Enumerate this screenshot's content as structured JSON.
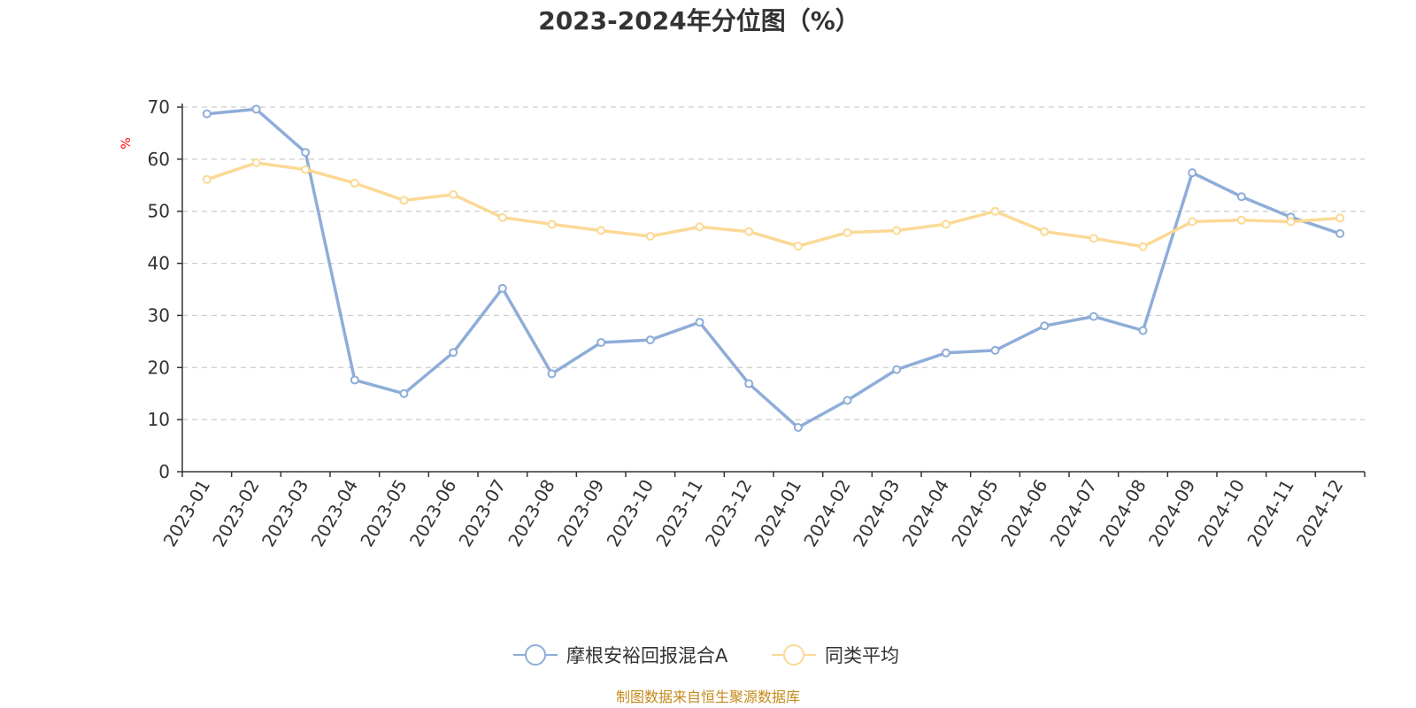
{
  "chart_data": {
    "type": "line",
    "title": "2023-2024年分位图（%）",
    "ylabel": "%",
    "ylim": [
      0,
      70
    ],
    "yticks": [
      0,
      10,
      20,
      30,
      40,
      50,
      60,
      70
    ],
    "grid": true,
    "legend_position": "bottom",
    "categories": [
      "2023-01",
      "2023-02",
      "2023-03",
      "2023-04",
      "2023-05",
      "2023-06",
      "2023-07",
      "2023-08",
      "2023-09",
      "2023-10",
      "2023-11",
      "2023-12",
      "2024-01",
      "2024-02",
      "2024-03",
      "2024-04",
      "2024-05",
      "2024-06",
      "2024-07",
      "2024-08",
      "2024-09",
      "2024-10",
      "2024-11",
      "2024-12"
    ],
    "series": [
      {
        "name": "摩根安裕回报混合A",
        "color": "#8eadd8",
        "values": [
          68.7,
          69.6,
          61.3,
          17.6,
          15.0,
          22.9,
          35.2,
          18.8,
          24.8,
          25.3,
          28.7,
          16.9,
          8.5,
          13.7,
          19.6,
          22.8,
          23.3,
          28.0,
          29.8,
          27.1,
          57.4,
          52.8,
          48.9,
          45.7
        ]
      },
      {
        "name": "同类平均",
        "color": "#fbd995",
        "values": [
          56.1,
          59.3,
          58.0,
          55.4,
          52.1,
          53.2,
          48.8,
          47.5,
          46.3,
          45.2,
          47.0,
          46.1,
          43.3,
          45.9,
          46.3,
          47.5,
          50.0,
          46.1,
          44.8,
          43.2,
          48.0,
          48.3,
          48.0,
          48.7
        ]
      }
    ]
  },
  "source_text": "制图数据来自恒生聚源数据库",
  "colors": {
    "unit_label": "#ff0000",
    "source_text": "#c48a1b",
    "grid": "#cccccc",
    "axis": "#333333"
  }
}
